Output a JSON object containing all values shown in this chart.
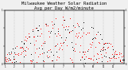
{
  "title": "Milwaukee Weather Solar Radiation\nAvg per Day W/m2/minute",
  "title_fontsize": 4.0,
  "bg_color": "#f0f0f0",
  "dot_color_red": "#ff0000",
  "dot_color_black": "#000000",
  "grid_color": "#999999",
  "xlim": [
    0,
    365
  ],
  "ylim": [
    0,
    0.9
  ],
  "vgrid_positions": [
    30,
    59,
    90,
    120,
    151,
    181,
    212,
    243,
    273,
    304,
    334
  ],
  "month_tick_positions": [
    1,
    30,
    59,
    90,
    120,
    151,
    181,
    212,
    243,
    273,
    304,
    334
  ],
  "month_tick_labels": [
    "1",
    "2",
    "3",
    "4",
    "5",
    "6",
    "7",
    "8",
    "9",
    "10",
    "11",
    "12"
  ]
}
